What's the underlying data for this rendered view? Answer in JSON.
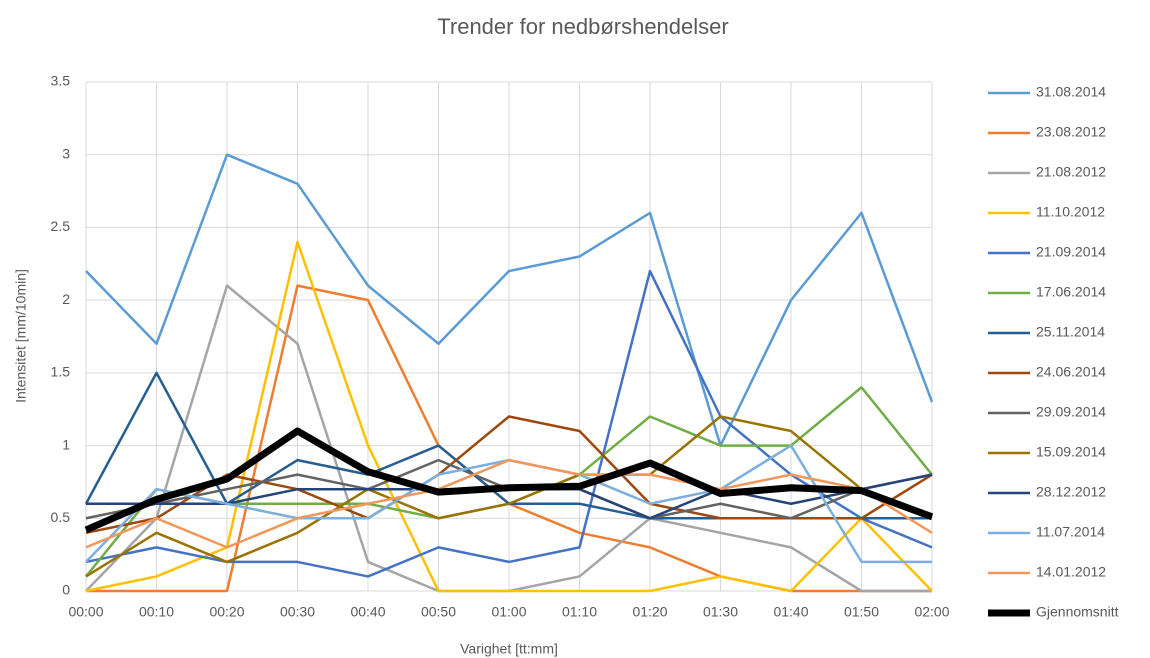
{
  "chart_data": {
    "type": "line",
    "title": "Trender for nedbørshendelser",
    "x_label": "Varighet [tt:mm]",
    "y_label": "Intensitet [mm/10min]",
    "categories": [
      "00:00",
      "00:10",
      "00:20",
      "00:30",
      "00:40",
      "00:50",
      "01:00",
      "01:10",
      "01:20",
      "01:30",
      "01:40",
      "01:50",
      "02:00"
    ],
    "ylim": [
      0,
      3.5
    ],
    "yticks": [
      0,
      0.5,
      1,
      1.5,
      2,
      2.5,
      3,
      3.5
    ],
    "grid": true,
    "legend": "right",
    "series": [
      {
        "name": "31.08.2014",
        "color": "#5b9bd5",
        "values": [
          2.2,
          1.7,
          3.0,
          2.8,
          2.1,
          1.7,
          2.2,
          2.3,
          2.6,
          1.0,
          2.0,
          2.6,
          1.3
        ]
      },
      {
        "name": "23.08.2012",
        "color": "#ed7d31",
        "values": [
          0,
          0,
          0,
          2.1,
          2.0,
          1.0,
          0.6,
          0.4,
          0.3,
          0.1,
          0,
          0,
          0
        ]
      },
      {
        "name": "21.08.2012",
        "color": "#a5a5a5",
        "values": [
          0,
          0.5,
          2.1,
          1.7,
          0.2,
          0,
          0,
          0.1,
          0.5,
          0.4,
          0.3,
          0,
          0
        ]
      },
      {
        "name": "11.10.2012",
        "color": "#ffc000",
        "values": [
          0,
          0.1,
          0.3,
          2.4,
          1.0,
          0,
          0,
          0,
          0,
          0.1,
          0,
          0.5,
          0
        ]
      },
      {
        "name": "21.09.2014",
        "color": "#4472c4",
        "values": [
          0.2,
          0.3,
          0.2,
          0.2,
          0.1,
          0.3,
          0.2,
          0.3,
          2.2,
          1.2,
          0.8,
          0.5,
          0.3
        ]
      },
      {
        "name": "17.06.2014",
        "color": "#70ad47",
        "values": [
          0.1,
          0.7,
          0.6,
          0.6,
          0.6,
          0.5,
          0.6,
          0.8,
          1.2,
          1.0,
          1.0,
          1.4,
          0.8
        ]
      },
      {
        "name": "25.11.2014",
        "color": "#255e91",
        "values": [
          0.6,
          1.5,
          0.6,
          0.9,
          0.8,
          1.0,
          0.6,
          0.6,
          0.5,
          0.5,
          0.5,
          0.5,
          0.5
        ]
      },
      {
        "name": "24.06.2014",
        "color": "#9e480e",
        "values": [
          0.4,
          0.5,
          0.8,
          0.7,
          0.5,
          0.8,
          1.2,
          1.1,
          0.6,
          0.5,
          0.5,
          0.5,
          0.8
        ]
      },
      {
        "name": "29.09.2014",
        "color": "#636363",
        "values": [
          0.5,
          0.6,
          0.7,
          0.8,
          0.7,
          0.9,
          0.7,
          0.7,
          0.5,
          0.6,
          0.5,
          0.7,
          0.8
        ]
      },
      {
        "name": "15.09.2014",
        "color": "#997300",
        "values": [
          0.1,
          0.4,
          0.2,
          0.4,
          0.7,
          0.5,
          0.6,
          0.8,
          0.8,
          1.2,
          1.1,
          0.7,
          0.5
        ]
      },
      {
        "name": "28.12.2012",
        "color": "#264478",
        "values": [
          0.6,
          0.6,
          0.6,
          0.7,
          0.7,
          0.7,
          0.7,
          0.7,
          0.5,
          0.7,
          0.6,
          0.7,
          0.8
        ]
      },
      {
        "name": "11.07.2014",
        "color": "#7cafdd",
        "values": [
          0.2,
          0.7,
          0.6,
          0.5,
          0.5,
          0.8,
          0.9,
          0.8,
          0.6,
          0.7,
          1.0,
          0.2,
          0.2
        ]
      },
      {
        "name": "14.01.2012",
        "color": "#f1975a",
        "values": [
          0.3,
          0.5,
          0.3,
          0.5,
          0.6,
          0.7,
          0.9,
          0.8,
          0.8,
          0.7,
          0.8,
          0.7,
          0.4
        ]
      },
      {
        "name": "Gjennomsnitt",
        "color": "#000000",
        "width": 7,
        "values": [
          0.42,
          0.63,
          0.77,
          1.1,
          0.82,
          0.68,
          0.71,
          0.72,
          0.88,
          0.67,
          0.71,
          0.69,
          0.51
        ]
      }
    ]
  }
}
